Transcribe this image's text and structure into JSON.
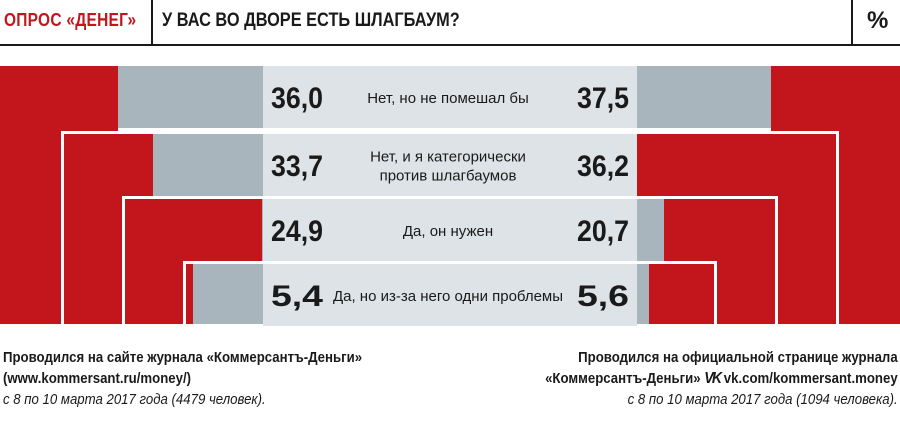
{
  "header": {
    "brand": "ОПРОС «ДЕНЕГ»",
    "question": "У ВАС ВО ДВОРЕ ЕСТЬ ШЛАГБАУМ?",
    "unit": "%"
  },
  "colors": {
    "red": "#c3161c",
    "gray": "#a9b5bd",
    "center": "#dde3e7",
    "white": "#ffffff",
    "text": "#1a1a1a"
  },
  "chart_data": {
    "type": "bar",
    "title": "У ВАС ВО ДВОРЕ ЕСТЬ ШЛАГБАУМ?",
    "unit": "%",
    "categories": [
      "Нет, но не помешал бы",
      "Нет, и я категорически против шлагбаумов",
      "Да, он нужен",
      "Да, но из-за него одни проблемы"
    ],
    "category_lines": [
      [
        "Нет, но не помешал бы"
      ],
      [
        "Нет, и я категорически",
        "против шлагбаумов"
      ],
      [
        "Да, он нужен"
      ],
      [
        "Да, но из-за него одни проблемы"
      ]
    ],
    "left_labels": [
      "36,0",
      "33,7",
      "24,9",
      "5,4"
    ],
    "right_labels": [
      "37,5",
      "36,2",
      "20,7",
      "5,6"
    ],
    "series": [
      {
        "values": [
          36.0,
          33.7,
          24.9,
          5.4
        ]
      },
      {
        "values": [
          37.5,
          36.2,
          20.7,
          5.6
        ]
      }
    ]
  },
  "footer": {
    "left": {
      "line1": "Проводился на сайте журнала «Коммерсантъ-Деньги»",
      "line2": "(www.kommersant.ru/money/)",
      "line3": "с 8 по 10 марта 2017 года (4479 человек)."
    },
    "right": {
      "line1": "Проводился на официальной странице журнала",
      "line2_a": "«Коммерсантъ-Деньги»",
      "vk_icon": "vk-logo-icon",
      "vk_glyph": "VK",
      "line2_b": "vk.com/kommersant.money",
      "line3": "с 8 по 10 марта 2017 года (1094 человека)."
    }
  }
}
